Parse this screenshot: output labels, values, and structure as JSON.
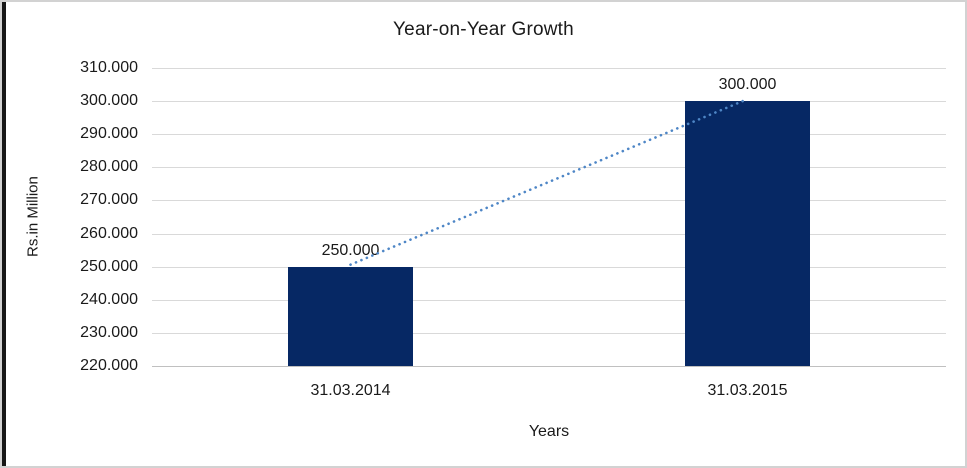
{
  "frame": {
    "background": "#ffffff",
    "border_color": "#d2d2d2",
    "left_edge_color": "#161616"
  },
  "chart_data": {
    "type": "bar",
    "title": "Year-on-Year Growth",
    "xlabel": "Years",
    "ylabel": "Rs.in Million",
    "categories": [
      "31.03.2014",
      "31.03.2015"
    ],
    "values": [
      250000,
      300000
    ],
    "value_labels": [
      "250.000",
      "300.000"
    ],
    "ylim": [
      220000,
      310000
    ],
    "ytick_step": 10000,
    "ytick_labels": [
      "310.000",
      "300.000",
      "290.000",
      "280.000",
      "270.000",
      "260.000",
      "250.000",
      "240.000",
      "230.000",
      "220.000"
    ],
    "grid": true,
    "legend": "none",
    "bar_color": "#062864",
    "gridline_color": "#d9d9d9",
    "axis_line_color": "#c0c0c0",
    "text_color": "#1a1a1a",
    "trendline": {
      "type": "linear",
      "style": "dotted",
      "color": "#4e86c6",
      "from_value": 250000,
      "to_value": 300000
    }
  }
}
